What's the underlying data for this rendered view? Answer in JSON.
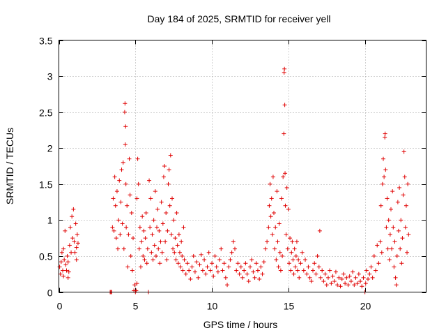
{
  "chart_data": {
    "type": "scatter",
    "title": "Day 184 of 2025, SRMTID for receiver yell",
    "xlabel": "GPS time / hours",
    "ylabel": "SRMTID / TECUs",
    "xlim": [
      0,
      24
    ],
    "ylim": [
      0,
      3.5
    ],
    "x_ticks": [
      "0",
      "5",
      "10",
      "15",
      "20"
    ],
    "x_tick_values": [
      0,
      5,
      10,
      15,
      20
    ],
    "y_ticks": [
      "0",
      "0.5",
      "1",
      "1.5",
      "2",
      "2.5",
      "3",
      "3.5"
    ],
    "y_tick_values": [
      0,
      0.5,
      1,
      1.5,
      2,
      2.5,
      3,
      3.5
    ],
    "grid": true,
    "marker": "+",
    "series_color": "#e00000",
    "series": [
      {
        "name": "SRMTID",
        "points": [
          [
            0.05,
            0.35
          ],
          [
            0.1,
            0.25
          ],
          [
            0.15,
            0.42
          ],
          [
            0.2,
            0.55
          ],
          [
            0.25,
            0.3
          ],
          [
            0.3,
            0.6
          ],
          [
            0.35,
            0.45
          ],
          [
            0.4,
            0.85
          ],
          [
            0.45,
            0.38
          ],
          [
            0.5,
            0.3
          ],
          [
            0.55,
            0.5
          ],
          [
            0.6,
            0.42
          ],
          [
            0.65,
            0.28
          ],
          [
            0.7,
            0.65
          ],
          [
            0.75,
            0.9
          ],
          [
            0.8,
            0.55
          ],
          [
            0.85,
            1.05
          ],
          [
            0.9,
            0.75
          ],
          [
            0.95,
            1.15
          ],
          [
            1.0,
            0.7
          ],
          [
            1.05,
            0.55
          ],
          [
            1.1,
            0.95
          ],
          [
            1.15,
            0.62
          ],
          [
            1.2,
            0.8
          ],
          [
            1.25,
            0.68
          ],
          [
            1.15,
            0.45
          ],
          [
            0.6,
            0.2
          ],
          [
            0.3,
            0.22
          ],
          [
            3.35,
            0.0
          ],
          [
            3.4,
            0.0
          ],
          [
            3.45,
            0.0
          ],
          [
            3.5,
            0.9
          ],
          [
            3.55,
            1.3
          ],
          [
            3.6,
            0.85
          ],
          [
            3.65,
            1.6
          ],
          [
            3.7,
            1.2
          ],
          [
            3.75,
            0.75
          ],
          [
            3.8,
            1.4
          ],
          [
            3.85,
            0.6
          ],
          [
            3.9,
            1.0
          ],
          [
            3.95,
            1.55
          ],
          [
            4.0,
            0.8
          ],
          [
            4.05,
            1.25
          ],
          [
            4.1,
            1.7
          ],
          [
            4.15,
            0.95
          ],
          [
            4.2,
            1.8
          ],
          [
            4.25,
            0.6
          ],
          [
            4.3,
            2.5
          ],
          [
            4.32,
            2.62
          ],
          [
            4.34,
            2.05
          ],
          [
            4.36,
            2.3
          ],
          [
            4.38,
            1.5
          ],
          [
            4.4,
            0.9
          ],
          [
            4.45,
            1.2
          ],
          [
            4.5,
            0.35
          ],
          [
            4.55,
            0.8
          ],
          [
            4.6,
            1.85
          ],
          [
            4.65,
            1.35
          ],
          [
            4.7,
            0.5
          ],
          [
            4.75,
            1.1
          ],
          [
            4.8,
            0.3
          ],
          [
            4.85,
            0.75
          ],
          [
            4.9,
            0.02
          ],
          [
            4.95,
            0.1
          ],
          [
            5.0,
            0.0
          ],
          [
            5.05,
            0.02
          ],
          [
            5.1,
            0.12
          ],
          [
            5.1,
            1.3
          ],
          [
            5.15,
            1.85
          ],
          [
            5.2,
            1.5
          ],
          [
            5.25,
            0.6
          ],
          [
            5.3,
            0.9
          ],
          [
            5.35,
            0.35
          ],
          [
            5.4,
            0.7
          ],
          [
            5.45,
            1.05
          ],
          [
            5.5,
            0.5
          ],
          [
            5.55,
            0.85
          ],
          [
            5.6,
            0.45
          ],
          [
            5.65,
            0.75
          ],
          [
            5.7,
            1.1
          ],
          [
            5.75,
            0.4
          ],
          [
            5.8,
            0.6
          ],
          [
            5.85,
            0.0
          ],
          [
            5.9,
            1.55
          ],
          [
            5.95,
            0.9
          ],
          [
            6.0,
            1.3
          ],
          [
            6.05,
            0.55
          ],
          [
            6.1,
            0.8
          ],
          [
            6.15,
            0.45
          ],
          [
            6.2,
            1.0
          ],
          [
            6.25,
            0.65
          ],
          [
            6.3,
            1.4
          ],
          [
            6.35,
            0.5
          ],
          [
            6.4,
            0.9
          ],
          [
            6.45,
            1.15
          ],
          [
            6.5,
            0.6
          ],
          [
            6.55,
            0.85
          ],
          [
            6.6,
            0.4
          ],
          [
            6.65,
            0.7
          ],
          [
            6.7,
            1.25
          ],
          [
            6.75,
            0.55
          ],
          [
            6.8,
            0.95
          ],
          [
            6.85,
            1.6
          ],
          [
            6.9,
            1.75
          ],
          [
            6.95,
            0.7
          ],
          [
            7.0,
            1.1
          ],
          [
            7.05,
            0.45
          ],
          [
            7.1,
            0.85
          ],
          [
            7.15,
            1.5
          ],
          [
            7.2,
            1.7
          ],
          [
            7.25,
            1.2
          ],
          [
            7.3,
            1.9
          ],
          [
            7.35,
            0.8
          ],
          [
            7.4,
            1.3
          ],
          [
            7.45,
            0.6
          ],
          [
            7.5,
            1.0
          ],
          [
            7.55,
            0.55
          ],
          [
            7.6,
            0.75
          ],
          [
            7.65,
            0.45
          ],
          [
            7.7,
            1.1
          ],
          [
            7.75,
            0.65
          ],
          [
            7.8,
            0.4
          ],
          [
            7.85,
            0.8
          ],
          [
            7.9,
            0.55
          ],
          [
            7.95,
            0.35
          ],
          [
            8.0,
            0.7
          ],
          [
            8.05,
            0.5
          ],
          [
            8.1,
            0.3
          ],
          [
            8.15,
            0.9
          ],
          [
            8.2,
            0.45
          ],
          [
            8.3,
            0.25
          ],
          [
            8.4,
            0.4
          ],
          [
            8.5,
            0.3
          ],
          [
            8.6,
            0.18
          ],
          [
            8.7,
            0.35
          ],
          [
            8.8,
            0.5
          ],
          [
            8.9,
            0.28
          ],
          [
            9.0,
            0.42
          ],
          [
            9.1,
            0.2
          ],
          [
            9.2,
            0.38
          ],
          [
            9.3,
            0.52
          ],
          [
            9.4,
            0.3
          ],
          [
            9.5,
            0.45
          ],
          [
            9.6,
            0.25
          ],
          [
            9.7,
            0.35
          ],
          [
            9.8,
            0.55
          ],
          [
            9.9,
            0.3
          ],
          [
            10.0,
            0.4
          ],
          [
            10.1,
            0.22
          ],
          [
            10.2,
            0.5
          ],
          [
            10.3,
            0.35
          ],
          [
            10.4,
            0.28
          ],
          [
            10.5,
            0.45
          ],
          [
            10.6,
            0.6
          ],
          [
            10.7,
            0.3
          ],
          [
            10.8,
            0.4
          ],
          [
            10.9,
            0.2
          ],
          [
            11.0,
            0.1
          ],
          [
            11.1,
            0.35
          ],
          [
            11.2,
            0.45
          ],
          [
            11.3,
            0.55
          ],
          [
            11.4,
            0.7
          ],
          [
            11.5,
            0.6
          ],
          [
            11.6,
            0.3
          ],
          [
            11.7,
            0.4
          ],
          [
            11.8,
            0.25
          ],
          [
            11.9,
            0.35
          ],
          [
            12.0,
            0.2
          ],
          [
            12.1,
            0.3
          ],
          [
            12.2,
            0.4
          ],
          [
            12.3,
            0.25
          ],
          [
            12.4,
            0.15
          ],
          [
            12.5,
            0.35
          ],
          [
            12.6,
            0.45
          ],
          [
            12.7,
            0.28
          ],
          [
            12.8,
            0.2
          ],
          [
            12.9,
            0.4
          ],
          [
            13.0,
            0.3
          ],
          [
            13.1,
            0.18
          ],
          [
            13.2,
            0.35
          ],
          [
            13.3,
            0.25
          ],
          [
            13.4,
            0.42
          ],
          [
            13.5,
            0.6
          ],
          [
            13.6,
            0.7
          ],
          [
            13.7,
            0.9
          ],
          [
            13.75,
            1.2
          ],
          [
            13.8,
            1.5
          ],
          [
            13.85,
            1.05
          ],
          [
            13.9,
            1.3
          ],
          [
            13.95,
            0.8
          ],
          [
            14.0,
            1.6
          ],
          [
            14.05,
            1.1
          ],
          [
            14.1,
            0.6
          ],
          [
            14.15,
            0.9
          ],
          [
            14.2,
            0.45
          ],
          [
            14.25,
            1.4
          ],
          [
            14.3,
            0.7
          ],
          [
            14.35,
            0.35
          ],
          [
            14.4,
            0.95
          ],
          [
            14.45,
            0.55
          ],
          [
            14.5,
            0.3
          ],
          [
            14.55,
            1.3
          ],
          [
            14.6,
            0.5
          ],
          [
            14.65,
            1.6
          ],
          [
            14.7,
            2.2
          ],
          [
            14.72,
            3.05
          ],
          [
            14.74,
            3.1
          ],
          [
            14.76,
            2.6
          ],
          [
            14.78,
            1.65
          ],
          [
            14.8,
            1.2
          ],
          [
            14.85,
            0.8
          ],
          [
            14.9,
            1.45
          ],
          [
            14.95,
            0.6
          ],
          [
            15.0,
            1.15
          ],
          [
            15.05,
            0.4
          ],
          [
            15.1,
            0.75
          ],
          [
            15.15,
            0.3
          ],
          [
            15.2,
            0.55
          ],
          [
            15.25,
            0.7
          ],
          [
            15.3,
            0.45
          ],
          [
            15.35,
            0.25
          ],
          [
            15.4,
            0.6
          ],
          [
            15.45,
            0.35
          ],
          [
            15.5,
            0.5
          ],
          [
            15.55,
            0.7
          ],
          [
            15.6,
            0.3
          ],
          [
            15.65,
            0.45
          ],
          [
            15.7,
            0.2
          ],
          [
            15.8,
            0.4
          ],
          [
            15.9,
            0.55
          ],
          [
            16.0,
            0.3
          ],
          [
            16.1,
            0.45
          ],
          [
            16.2,
            0.25
          ],
          [
            16.3,
            0.35
          ],
          [
            16.4,
            0.2
          ],
          [
            16.5,
            0.15
          ],
          [
            16.6,
            0.3
          ],
          [
            16.7,
            0.4
          ],
          [
            16.8,
            0.25
          ],
          [
            16.9,
            0.5
          ],
          [
            17.0,
            0.35
          ],
          [
            17.05,
            0.85
          ],
          [
            17.1,
            0.2
          ],
          [
            17.2,
            0.3
          ],
          [
            17.3,
            0.15
          ],
          [
            17.4,
            0.25
          ],
          [
            17.5,
            0.1
          ],
          [
            17.6,
            0.2
          ],
          [
            17.7,
            0.3
          ],
          [
            17.8,
            0.12
          ],
          [
            17.9,
            0.22
          ],
          [
            18.0,
            0.15
          ],
          [
            18.1,
            0.28
          ],
          [
            18.2,
            0.1
          ],
          [
            18.3,
            0.2
          ],
          [
            18.4,
            0.08
          ],
          [
            18.5,
            0.18
          ],
          [
            18.6,
            0.25
          ],
          [
            18.7,
            0.12
          ],
          [
            18.8,
            0.2
          ],
          [
            18.9,
            0.1
          ],
          [
            19.0,
            0.22
          ],
          [
            19.1,
            0.15
          ],
          [
            19.2,
            0.28
          ],
          [
            19.3,
            0.1
          ],
          [
            19.4,
            0.2
          ],
          [
            19.5,
            0.12
          ],
          [
            19.6,
            0.25
          ],
          [
            19.7,
            0.15
          ],
          [
            19.8,
            0.08
          ],
          [
            19.9,
            0.2
          ],
          [
            20.0,
            0.0
          ],
          [
            20.05,
            0.12
          ],
          [
            20.1,
            0.3
          ],
          [
            20.2,
            0.18
          ],
          [
            20.3,
            0.25
          ],
          [
            20.4,
            0.35
          ],
          [
            20.5,
            0.2
          ],
          [
            20.6,
            0.5
          ],
          [
            20.7,
            0.3
          ],
          [
            20.8,
            0.65
          ],
          [
            20.9,
            0.4
          ],
          [
            21.0,
            0.7
          ],
          [
            21.05,
            1.2
          ],
          [
            21.1,
            0.55
          ],
          [
            21.15,
            1.5
          ],
          [
            21.2,
            1.85
          ],
          [
            21.25,
            1.6
          ],
          [
            21.3,
            2.15
          ],
          [
            21.32,
            2.2
          ],
          [
            21.35,
            1.7
          ],
          [
            21.4,
            0.9
          ],
          [
            21.45,
            1.3
          ],
          [
            21.5,
            0.6
          ],
          [
            21.55,
            1.0
          ],
          [
            21.6,
            0.45
          ],
          [
            21.65,
            0.8
          ],
          [
            21.7,
            1.15
          ],
          [
            21.75,
            0.6
          ],
          [
            21.8,
            1.4
          ],
          [
            21.85,
            0.9
          ],
          [
            21.9,
            0.35
          ],
          [
            21.95,
            0.7
          ],
          [
            22.0,
            0.2
          ],
          [
            22.05,
            0.1
          ],
          [
            22.1,
            0.5
          ],
          [
            22.15,
            1.25
          ],
          [
            22.2,
            0.85
          ],
          [
            22.25,
            1.45
          ],
          [
            22.3,
            0.6
          ],
          [
            22.35,
            1.0
          ],
          [
            22.4,
            0.4
          ],
          [
            22.45,
            0.75
          ],
          [
            22.5,
            1.35
          ],
          [
            22.55,
            1.95
          ],
          [
            22.6,
            1.6
          ],
          [
            22.65,
            0.9
          ],
          [
            22.7,
            1.2
          ],
          [
            22.75,
            0.55
          ],
          [
            22.8,
            1.5
          ],
          [
            22.85,
            0.8
          ]
        ]
      }
    ]
  }
}
